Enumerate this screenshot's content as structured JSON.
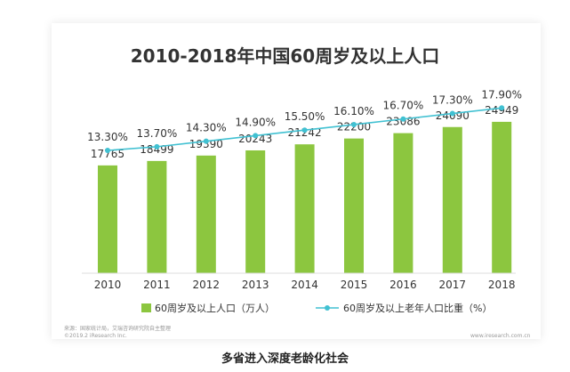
{
  "chart_data": {
    "type": "bar",
    "title": "2010-2018年中国60周岁及以上人口",
    "categories": [
      "2010",
      "2011",
      "2012",
      "2013",
      "2014",
      "2015",
      "2016",
      "2017",
      "2018"
    ],
    "series": [
      {
        "name": "60周岁及以上人口（万人）",
        "type": "bar",
        "values": [
          17765,
          18499,
          19390,
          20243,
          21242,
          22200,
          23086,
          24090,
          24949
        ],
        "labels": [
          "17765",
          "18499",
          "19390",
          "20243",
          "21242",
          "22200",
          "23086",
          "24090",
          "24949"
        ],
        "color": "#8cc63f"
      },
      {
        "name": "60周岁及以上老年人口比重（%）",
        "type": "line",
        "values": [
          13.3,
          13.7,
          14.3,
          14.9,
          15.5,
          16.1,
          16.7,
          17.3,
          17.9
        ],
        "labels": [
          "13.30%",
          "13.70%",
          "14.30%",
          "14.90%",
          "15.50%",
          "16.10%",
          "16.70%",
          "17.30%",
          "17.90%"
        ],
        "color": "#41c1d2"
      }
    ],
    "ylim_bars": [
      0,
      44000
    ],
    "ylim_line": [
      0,
      18.7
    ],
    "legend_position": "bottom",
    "grid": false
  },
  "footer": {
    "source": "来源：国家统计局，艾瑞咨询研究院自主整理",
    "copyright": "©2019.2 iResearch Inc.",
    "brand": "www.iresearch.com.cn"
  },
  "caption": "多省进入深度老龄化社会",
  "colors": {
    "bar": "#8cc63f",
    "line": "#41c1d2",
    "text": "#333333"
  }
}
